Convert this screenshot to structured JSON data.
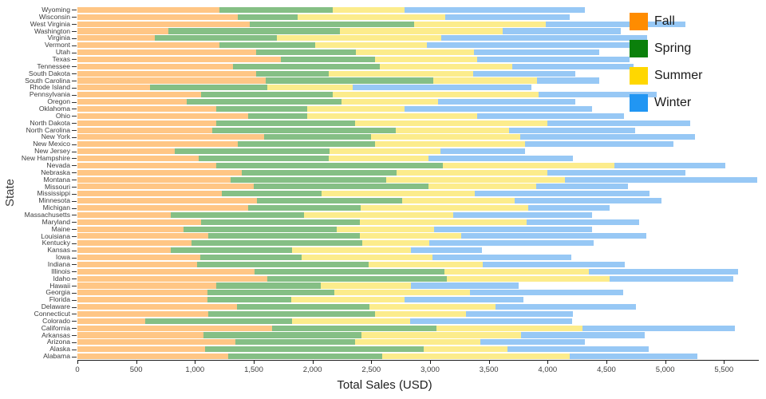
{
  "chart_data": {
    "type": "bar",
    "orientation": "horizontal-stacked",
    "title": "",
    "xlabel": "Total Sales (USD)",
    "ylabel": "State",
    "xlim": [
      0,
      5790
    ],
    "x_ticks": [
      0,
      500,
      1000,
      1500,
      2000,
      2500,
      3000,
      3500,
      4000,
      4500,
      5000,
      5500
    ],
    "grid": false,
    "legend_position": "top-right",
    "categories": [
      "Wyoming",
      "Wisconsin",
      "West Virginia",
      "Washington",
      "Virginia",
      "Vermont",
      "Utah",
      "Texas",
      "Tennessee",
      "South Dakota",
      "South Carolina",
      "Rhode Island",
      "Pennsylvania",
      "Oregon",
      "Oklahoma",
      "Ohio",
      "North Dakota",
      "North Carolina",
      "New York",
      "New Mexico",
      "New Jersey",
      "New Hampshire",
      "Nevada",
      "Nebraska",
      "Montana",
      "Missouri",
      "Mississippi",
      "Minnesota",
      "Michigan",
      "Massachusetts",
      "Maryland",
      "Maine",
      "Louisiana",
      "Kentucky",
      "Kansas",
      "Iowa",
      "Indiana",
      "Illinois",
      "Idaho",
      "Hawaii",
      "Georgia",
      "Florida",
      "Delaware",
      "Connecticut",
      "Colorado",
      "California",
      "Arkansas",
      "Arizona",
      "Alaska",
      "Alabama"
    ],
    "series": [
      {
        "name": "Fall",
        "color": "#FF8C00",
        "bar_color": "#FFC685",
        "values": [
          1210,
          1365,
          1465,
          775,
          660,
          1210,
          1520,
          1730,
          1325,
          1520,
          1605,
          620,
          1050,
          930,
          1180,
          1450,
          1180,
          1145,
          1585,
          1365,
          825,
          1035,
          1180,
          1395,
          1305,
          1500,
          1230,
          1530,
          1450,
          795,
          1050,
          900,
          1115,
          970,
          795,
          1045,
          1015,
          1510,
          1615,
          1180,
          1105,
          1105,
          1355,
          1115,
          580,
          1655,
          1075,
          1345,
          1085,
          1280
        ]
      },
      {
        "name": "Spring",
        "color": "#0B800B",
        "bar_color": "#85BF85",
        "values": [
          965,
          510,
          1400,
          1460,
          1035,
          810,
          850,
          800,
          1245,
          620,
          1425,
          995,
          1125,
          1315,
          775,
          505,
          1180,
          1565,
          915,
          1165,
          1320,
          1105,
          1930,
          1320,
          1325,
          1485,
          850,
          1235,
          960,
          1130,
          1350,
          1305,
          1285,
          1455,
          1030,
          865,
          1460,
          1615,
          1530,
          890,
          1080,
          715,
          1130,
          1415,
          1245,
          1400,
          1340,
          1015,
          1860,
          1310
        ]
      },
      {
        "name": "Summer",
        "color": "#FFD700",
        "bar_color": "#FCEC8C",
        "values": [
          610,
          1255,
          1120,
          1380,
          1400,
          955,
          1005,
          870,
          1130,
          1230,
          880,
          725,
          1750,
          820,
          830,
          1445,
          1640,
          960,
          1265,
          1275,
          945,
          850,
          1460,
          1285,
          1515,
          920,
          1300,
          955,
          1425,
          1270,
          1425,
          830,
          865,
          570,
          1015,
          1110,
          975,
          1225,
          1380,
          770,
          1155,
          960,
          1070,
          775,
          1005,
          1245,
          1360,
          1065,
          715,
          1595
        ]
      },
      {
        "name": "Winter",
        "color": "#2196F3",
        "bar_color": "#97C8F5",
        "values": [
          1530,
          1060,
          1185,
          1005,
          1750,
          1720,
          1065,
          1295,
          1030,
          865,
          530,
          1525,
          1005,
          1170,
          1590,
          1250,
          1215,
          1075,
          1490,
          1265,
          715,
          1225,
          945,
          1170,
          1640,
          780,
          1490,
          1250,
          695,
          1180,
          955,
          1340,
          1575,
          1400,
          600,
          1180,
          1205,
          1270,
          1055,
          915,
          1300,
          1015,
          1195,
          910,
          1380,
          1295,
          1050,
          895,
          1200,
          1090
        ]
      }
    ]
  }
}
